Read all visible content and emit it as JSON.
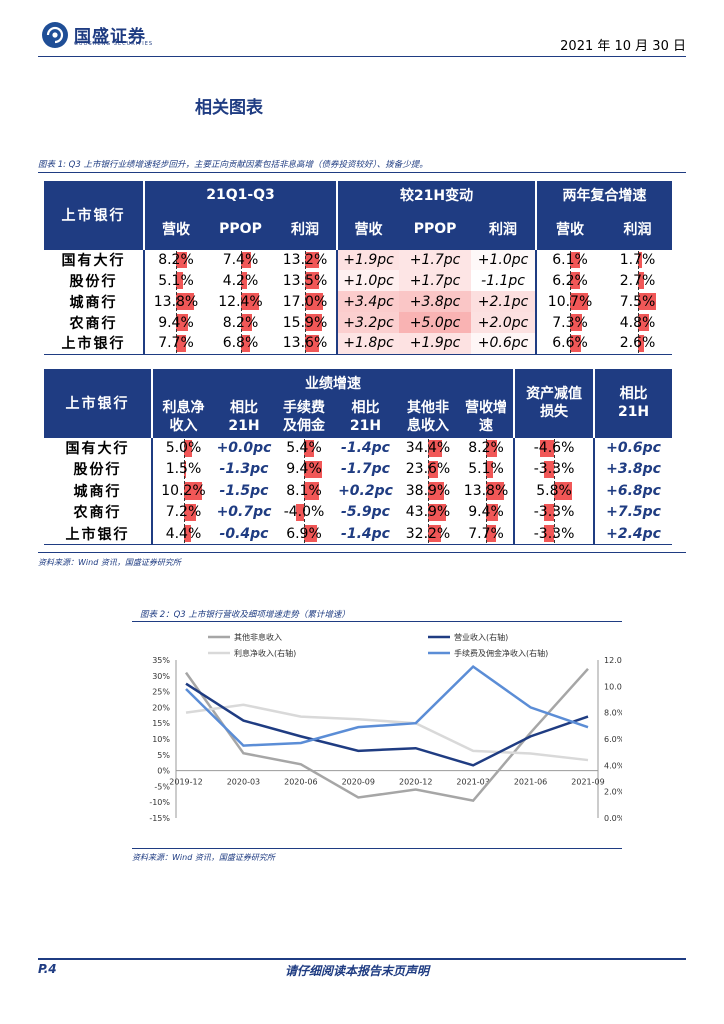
{
  "header": {
    "logo_text": "国盛证券",
    "logo_sub": "GUOSHENG SECURITIES",
    "date": "2021 年 10 月 30 日"
  },
  "section_title": "相关图表",
  "table1": {
    "caption": "图表 1: Q3 上市银行业绩增速轻步回升，主要正向贡献因素包括非息高增（债券投资较好）、拨备少提。",
    "corner": "上市银行",
    "groups": [
      "21Q1-Q3",
      "较21H变动",
      "两年复合增速"
    ],
    "cols": [
      "营收",
      "PPOP",
      "利润",
      "营收",
      "PPOP",
      "利润",
      "营收",
      "利润"
    ],
    "rows": [
      {
        "label": "国有大行",
        "vals": [
          "8.2%",
          "7.4%",
          "13.2%",
          "+1.9pc",
          "+1.7pc",
          "+1.0pc",
          "6.1%",
          "1.7%"
        ]
      },
      {
        "label": "股份行",
        "vals": [
          "5.1%",
          "4.2%",
          "13.5%",
          "+1.0pc",
          "+1.7pc",
          "-1.1pc",
          "6.2%",
          "2.7%"
        ]
      },
      {
        "label": "城商行",
        "vals": [
          "13.8%",
          "12.4%",
          "17.0%",
          "+3.4pc",
          "+3.8pc",
          "+2.1pc",
          "10.7%",
          "7.5%"
        ]
      },
      {
        "label": "农商行",
        "vals": [
          "9.4%",
          "8.2%",
          "15.9%",
          "+3.2pc",
          "+5.0pc",
          "+2.0pc",
          "7.3%",
          "4.8%"
        ]
      },
      {
        "label": "上市银行",
        "vals": [
          "7.7%",
          "6.8%",
          "13.6%",
          "+1.8pc",
          "+1.9pc",
          "+0.6pc",
          "6.6%",
          "2.6%"
        ]
      }
    ],
    "bars": [
      [
        0.59,
        0.6,
        0.78,
        null,
        null,
        null,
        0.57,
        0.23
      ],
      [
        0.37,
        0.34,
        0.79,
        null,
        null,
        null,
        0.58,
        0.36
      ],
      [
        1.0,
        1.0,
        1.0,
        null,
        null,
        null,
        1.0,
        1.0
      ],
      [
        0.68,
        0.66,
        0.94,
        null,
        null,
        null,
        0.68,
        0.64
      ],
      [
        0.56,
        0.55,
        0.8,
        null,
        null,
        null,
        0.62,
        0.35
      ]
    ],
    "shade": [
      [
        0.15,
        0.12,
        0.1,
        0.38,
        0.34,
        0.1
      ],
      [
        0.08,
        0.12,
        0.0,
        0.2,
        0.34,
        0.0
      ],
      [
        0.3,
        0.28,
        0.2,
        0.68,
        0.76,
        0.42
      ],
      [
        0.28,
        0.4,
        0.2,
        0.64,
        1.0,
        0.4
      ],
      [
        0.12,
        0.13,
        0.05,
        0.36,
        0.38,
        0.12
      ]
    ]
  },
  "table2": {
    "corner": "上市银行",
    "group": "业绩增速",
    "col_asset": "资产减值损失",
    "col_vs": [
      "相比",
      "21H"
    ],
    "subcols": [
      [
        "利息净",
        "收入"
      ],
      [
        "相比",
        "21H"
      ],
      [
        "手续费",
        "及佣金"
      ],
      [
        "相比",
        "21H"
      ],
      [
        "其他非",
        "息收入"
      ],
      [
        "营收增",
        "速"
      ]
    ],
    "rows": [
      {
        "label": "国有大行",
        "vals": [
          "5.0%",
          "+0.0pc",
          "5.4%",
          "-1.4pc",
          "34.4%",
          "8.2%",
          "-4.6%",
          "+0.6pc"
        ]
      },
      {
        "label": "股份行",
        "vals": [
          "1.5%",
          "-1.3pc",
          "9.4%",
          "-1.7pc",
          "23.6%",
          "5.1%",
          "-3.3%",
          "+3.8pc"
        ]
      },
      {
        "label": "城商行",
        "vals": [
          "10.2%",
          "-1.5pc",
          "8.1%",
          "+0.2pc",
          "38.9%",
          "13.8%",
          "5.8%",
          "+6.8pc"
        ]
      },
      {
        "label": "农商行",
        "vals": [
          "7.2%",
          "+0.7pc",
          "-4.0%",
          "-5.9pc",
          "43.9%",
          "9.4%",
          "-3.3%",
          "+7.5pc"
        ]
      },
      {
        "label": "上市银行",
        "vals": [
          "4.4%",
          "-0.4pc",
          "6.9%",
          "-1.4pc",
          "32.2%",
          "7.7%",
          "-3.3%",
          "+2.4pc"
        ]
      }
    ],
    "bars": [
      [
        0.49,
        null,
        0.57,
        null,
        0.78,
        0.59,
        -0.79,
        null
      ],
      [
        0.15,
        null,
        1.0,
        null,
        0.54,
        0.37,
        -0.57,
        null
      ],
      [
        1.0,
        null,
        0.86,
        null,
        0.89,
        1.0,
        1.0,
        null
      ],
      [
        0.71,
        null,
        -0.43,
        null,
        1.0,
        0.68,
        -0.57,
        null
      ],
      [
        0.43,
        null,
        0.73,
        null,
        0.73,
        0.56,
        -0.57,
        null
      ]
    ],
    "source": "资料来源：Wind 资讯，国盛证券研究所"
  },
  "chart2": {
    "caption": "图表 2：Q3 上市银行营收及细项增速走势（累计增速）",
    "source": "资料来源：Wind 资讯，国盛证券研究所"
  },
  "chart_data": {
    "type": "line",
    "categories": [
      "2019-12",
      "2020-03",
      "2020-06",
      "2020-09",
      "2020-12",
      "2021-03",
      "2021-06",
      "2021-09"
    ],
    "left_axis": {
      "ticks": [
        "35%",
        "30%",
        "25%",
        "20%",
        "15%",
        "10%",
        "5%",
        "0%",
        "-5%",
        "-10%",
        "-15%"
      ],
      "ylim": [
        -15,
        35
      ]
    },
    "right_axis": {
      "ticks": [
        "12.0%",
        "10.0%",
        "8.0%",
        "6.0%",
        "4.0%",
        "2.0%",
        "0.0%"
      ],
      "ylim": [
        0,
        12
      ]
    },
    "series": [
      {
        "name": "其他非息收入",
        "axis": "left",
        "color": "#a6a6a6",
        "values": [
          31,
          5.5,
          2,
          -8.5,
          -6,
          -9.5,
          12,
          32.2
        ]
      },
      {
        "name": "利息净收入(右轴)",
        "axis": "right",
        "color": "#d9d9d9",
        "values": [
          8.0,
          8.6,
          7.7,
          7.5,
          7.2,
          5.1,
          4.9,
          4.4
        ]
      },
      {
        "name": "营业收入(右轴)",
        "axis": "right",
        "color": "#1f3c82",
        "values": [
          10.2,
          7.4,
          6.2,
          5.1,
          5.3,
          4.0,
          6.2,
          7.7
        ]
      },
      {
        "name": "手续费及佣金净收入(右轴)",
        "axis": "right",
        "color": "#5b8dd6",
        "values": [
          9.8,
          5.5,
          5.7,
          6.9,
          7.2,
          11.5,
          8.4,
          6.9
        ]
      }
    ]
  },
  "footer": {
    "page": "P.4",
    "disclaimer": "请仔细阅读本报告末页声明"
  }
}
